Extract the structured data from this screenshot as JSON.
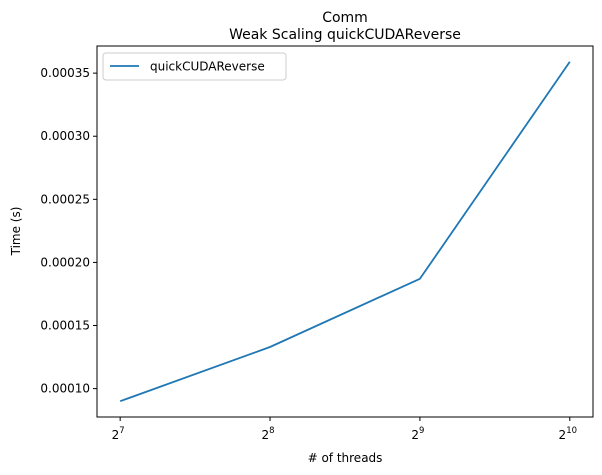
{
  "chart_data": {
    "type": "line",
    "title_line1": "Comm",
    "title_line2": "Weak Scaling quickCUDAReverse",
    "xlabel": "# of threads",
    "ylabel": "Time (s)",
    "x_scale": "log2",
    "x_ticks": [
      {
        "base": "2",
        "exp": "7",
        "value": 128
      },
      {
        "base": "2",
        "exp": "8",
        "value": 256
      },
      {
        "base": "2",
        "exp": "9",
        "value": 512
      },
      {
        "base": "2",
        "exp": "10",
        "value": 1024
      }
    ],
    "y_ticks": [
      {
        "label": "0.00010",
        "value": 0.0001
      },
      {
        "label": "0.00015",
        "value": 0.00015
      },
      {
        "label": "0.00020",
        "value": 0.0002
      },
      {
        "label": "0.00025",
        "value": 0.00025
      },
      {
        "label": "0.00030",
        "value": 0.0003
      },
      {
        "label": "0.00035",
        "value": 0.00035
      }
    ],
    "xlim": [
      115,
      1140
    ],
    "ylim": [
      7.75e-05,
      0.0003715
    ],
    "grid": false,
    "legend_position": "upper-left",
    "series": [
      {
        "name": "quickCUDAReverse",
        "color": "#1f77b4",
        "x": [
          128,
          256,
          512,
          1024
        ],
        "y": [
          9e-05,
          0.000133,
          0.000187,
          0.000359
        ]
      }
    ]
  }
}
